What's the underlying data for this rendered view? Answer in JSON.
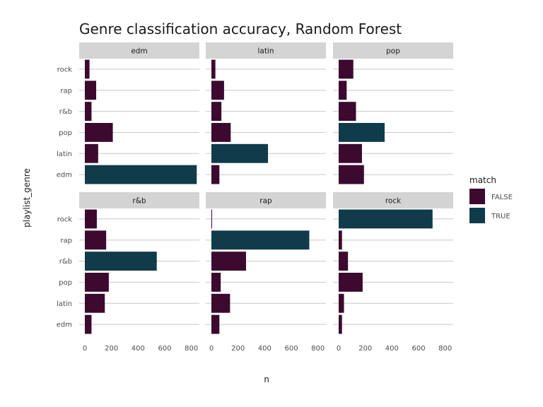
{
  "chart_data": {
    "type": "bar",
    "orientation": "horizontal",
    "title": "Genre classification accuracy, Random Forest",
    "xlabel": "n",
    "ylabel": "playlist_genre",
    "xlim": [
      0,
      860
    ],
    "x_ticks": [
      0,
      200,
      400,
      600,
      800
    ],
    "categories": [
      "edm",
      "latin",
      "pop",
      "r&b",
      "rap",
      "rock"
    ],
    "legend": {
      "title": "match",
      "position": "right",
      "entries": [
        {
          "label": "FALSE",
          "color": "#3b0a2e"
        },
        {
          "label": "TRUE",
          "color": "#0f3b4a"
        }
      ]
    },
    "grid": true,
    "facets": [
      {
        "name": "edm",
        "values": {
          "rock": 35,
          "rap": 85,
          "r&b": 50,
          "pop": 210,
          "latin": 100,
          "edm": 840
        }
      },
      {
        "name": "latin",
        "values": {
          "rock": 30,
          "rap": 95,
          "r&b": 75,
          "pop": 145,
          "latin": 425,
          "edm": 60
        }
      },
      {
        "name": "pop",
        "values": {
          "rock": 110,
          "rap": 60,
          "r&b": 130,
          "pop": 345,
          "latin": 175,
          "edm": 190
        }
      },
      {
        "name": "r&b",
        "values": {
          "rock": 90,
          "rap": 160,
          "r&b": 540,
          "pop": 180,
          "latin": 150,
          "edm": 50
        }
      },
      {
        "name": "rap",
        "values": {
          "rock": 5,
          "rap": 735,
          "r&b": 260,
          "pop": 70,
          "latin": 140,
          "edm": 60
        }
      },
      {
        "name": "rock",
        "values": {
          "rock": 705,
          "rap": 25,
          "r&b": 70,
          "pop": 180,
          "latin": 40,
          "edm": 25
        }
      }
    ]
  }
}
